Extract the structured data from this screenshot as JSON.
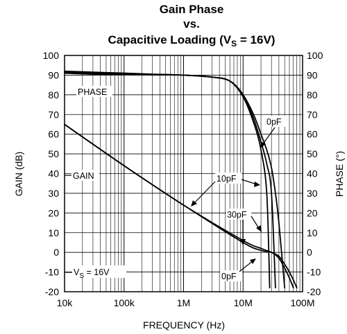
{
  "chart_data": {
    "type": "line",
    "title_lines": [
      "Gain Phase",
      "vs.",
      "Capacitive Loading (V",
      "S",
      " = 16V)"
    ],
    "xlabel": "FREQUENCY (Hz)",
    "ylabel_left": "GAIN (dB)",
    "ylabel_right": "PHASE (°)",
    "xscale": "log",
    "xlim": [
      10000,
      100000000
    ],
    "ylim": [
      -20,
      100
    ],
    "ylim_right": [
      -20,
      100
    ],
    "x_ticks": [
      {
        "value": 10000,
        "label": "10k"
      },
      {
        "value": 100000,
        "label": "100k"
      },
      {
        "value": 1000000,
        "label": "1M"
      },
      {
        "value": 10000000,
        "label": "10M"
      },
      {
        "value": 100000000,
        "label": "100M"
      }
    ],
    "y_ticks": [
      "100",
      "90",
      "80",
      "70",
      "60",
      "50",
      "40",
      "30",
      "20",
      "10",
      "0",
      "-10",
      "-20"
    ],
    "y_tick_values": [
      100,
      90,
      80,
      70,
      60,
      50,
      40,
      30,
      20,
      10,
      0,
      -10,
      -20
    ],
    "grid": true,
    "series": [
      {
        "name": "PHASE 0pF",
        "axis": "right",
        "x": [
          10000,
          30000,
          100000,
          300000,
          1000000,
          3000000,
          6000000,
          10000000,
          15000000,
          20000000,
          25000000,
          30000000,
          35000000,
          40000000,
          50000000
        ],
        "y": [
          91,
          90.5,
          90.3,
          90.2,
          90,
          89,
          87,
          80,
          70,
          60,
          52,
          43,
          30,
          15,
          -18
        ]
      },
      {
        "name": "PHASE 10pF",
        "axis": "right",
        "x": [
          10000,
          30000,
          100000,
          300000,
          1000000,
          3000000,
          6000000,
          10000000,
          15000000,
          20000000,
          25000000,
          30000000,
          35000000
        ],
        "y": [
          92,
          91.5,
          91,
          90.5,
          90,
          89,
          87,
          80,
          68,
          56,
          45,
          30,
          -18
        ]
      },
      {
        "name": "PHASE 30pF",
        "axis": "right",
        "x": [
          10000,
          30000,
          100000,
          300000,
          1000000,
          3000000,
          6000000,
          10000000,
          15000000,
          20000000,
          25000000,
          28000000
        ],
        "y": [
          91.5,
          91,
          90.5,
          90.2,
          90,
          89,
          87,
          79,
          66,
          52,
          30,
          -18
        ]
      },
      {
        "name": "GAIN 0pF",
        "axis": "left",
        "x": [
          10000,
          100000,
          1000000,
          10000000,
          20000000,
          30000000,
          40000000,
          50000000,
          60000000,
          70000000,
          80000000
        ],
        "y": [
          65,
          44,
          24,
          6,
          2,
          0,
          -2,
          -6,
          -10,
          -14,
          -18
        ]
      },
      {
        "name": "GAIN 30pF",
        "axis": "left",
        "x": [
          10000,
          100000,
          1000000,
          10000000,
          20000000,
          30000000,
          40000000,
          50000000,
          60000000,
          70000000
        ],
        "y": [
          65,
          44,
          24,
          5,
          1,
          0,
          -3,
          -8,
          -13,
          -18
        ]
      }
    ]
  },
  "annotations": {
    "phase": "PHASE",
    "gain": "GAIN",
    "vs_label": "V",
    "vs_sub": "S",
    "vs_rest": " = 16V",
    "pf0_top": "0pF",
    "pf10": "10pF",
    "pf30": "30pF",
    "pf0_bottom": "0pF"
  }
}
